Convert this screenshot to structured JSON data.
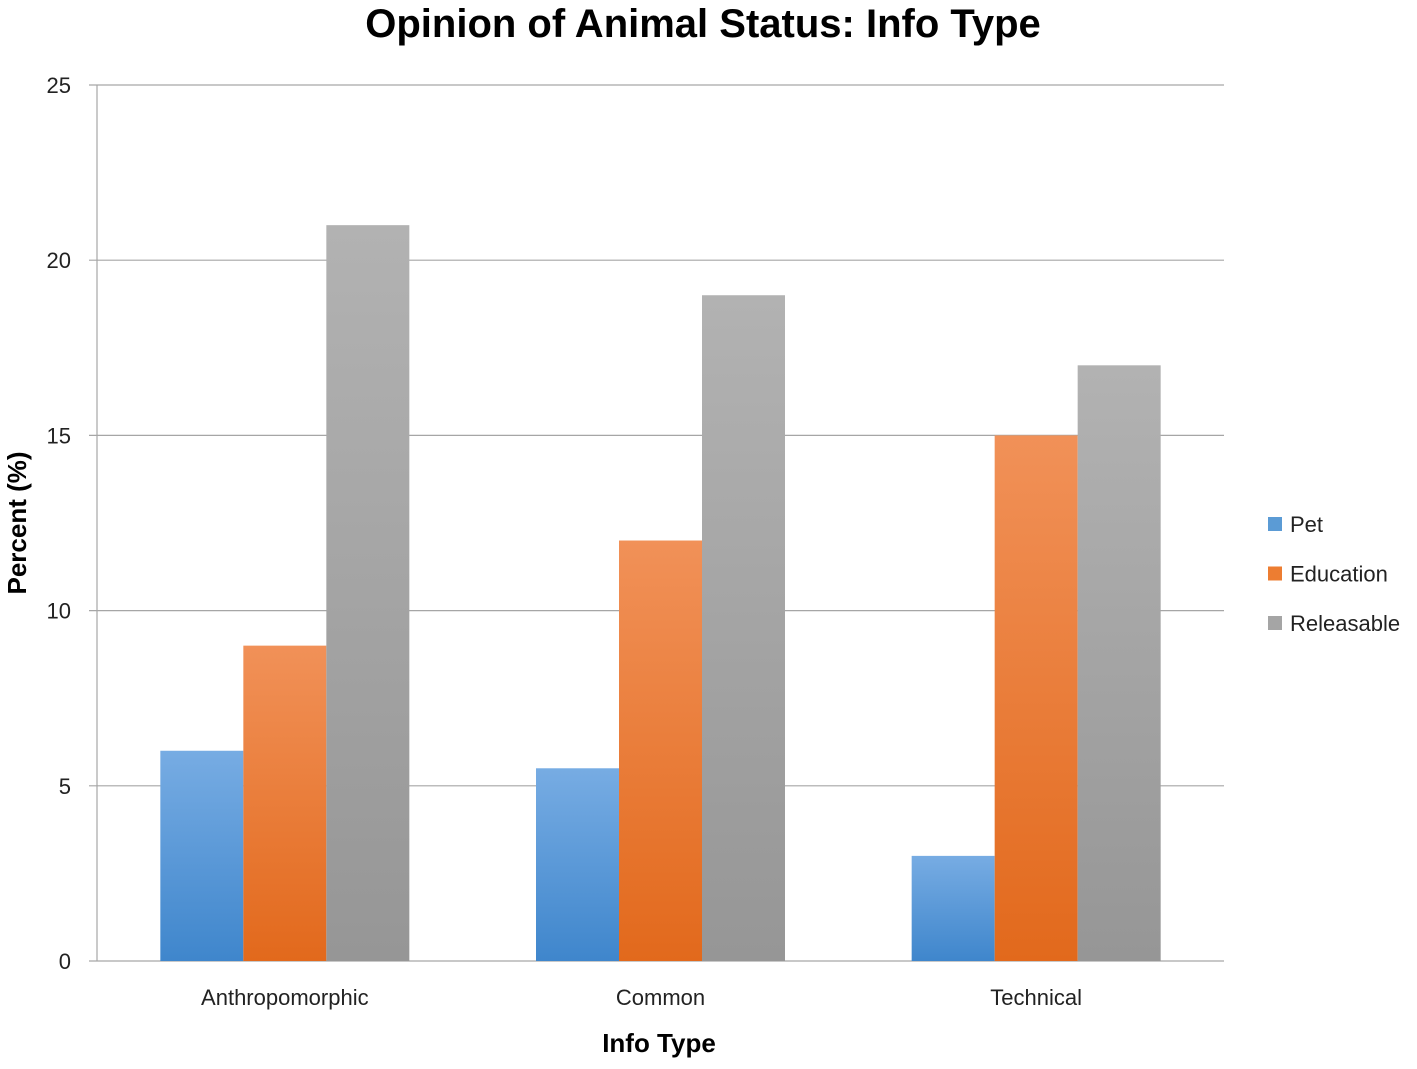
{
  "chart_data": {
    "type": "bar",
    "title": "Opinion of Animal Status: Info Type",
    "xlabel": "Info Type",
    "ylabel": "Percent (%)",
    "ylim": [
      0,
      25
    ],
    "yticks": [
      0,
      5,
      10,
      15,
      20,
      25
    ],
    "categories": [
      "Anthropomorphic",
      "Common",
      "Technical"
    ],
    "series": [
      {
        "name": "Pet",
        "values": [
          6,
          5.5,
          3
        ],
        "color": "#5b9bd5",
        "color_light": "#77ace3",
        "color_dark": "#3f86cc"
      },
      {
        "name": "Education",
        "values": [
          9,
          12,
          15
        ],
        "color": "#ed7d31",
        "color_light": "#f19158",
        "color_dark": "#e2691c"
      },
      {
        "name": "Releasable",
        "values": [
          21,
          19,
          17
        ],
        "color": "#a5a5a5",
        "color_light": "#b2b2b2",
        "color_dark": "#969696"
      }
    ],
    "grid": true,
    "legend_position": "right"
  }
}
